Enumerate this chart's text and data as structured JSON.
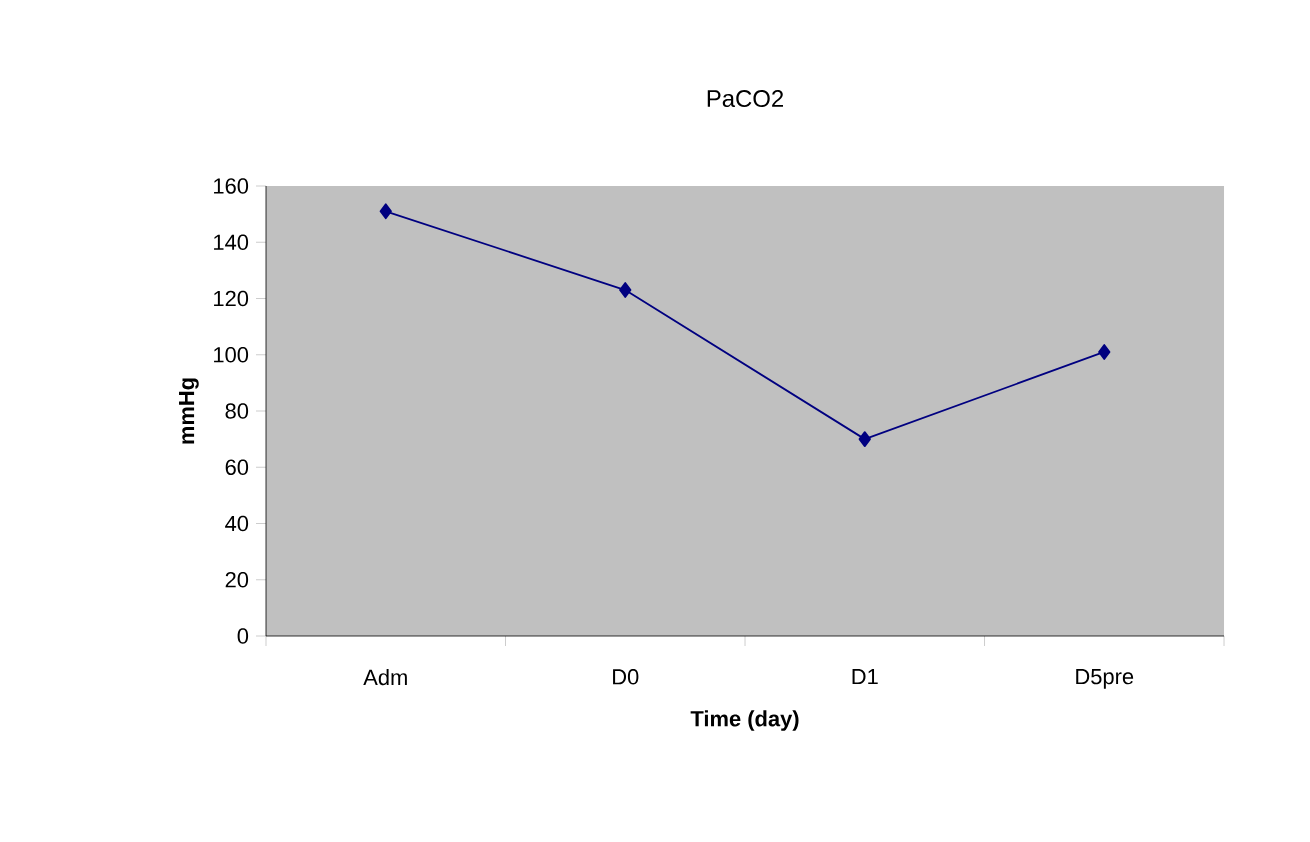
{
  "chart_data": {
    "type": "line",
    "title": "PaCO2",
    "xlabel": "Time (day)",
    "ylabel": "mmHg",
    "categories": [
      "Adm",
      "D0",
      "D1",
      "D5pre"
    ],
    "series": [
      {
        "color": "#000080",
        "values": [
          151,
          123,
          70,
          101
        ]
      }
    ],
    "ylim": [
      0,
      160
    ],
    "yticks": [
      0,
      20,
      40,
      60,
      80,
      100,
      120,
      140,
      160
    ],
    "marker": "diamond",
    "line_style": "solid"
  }
}
